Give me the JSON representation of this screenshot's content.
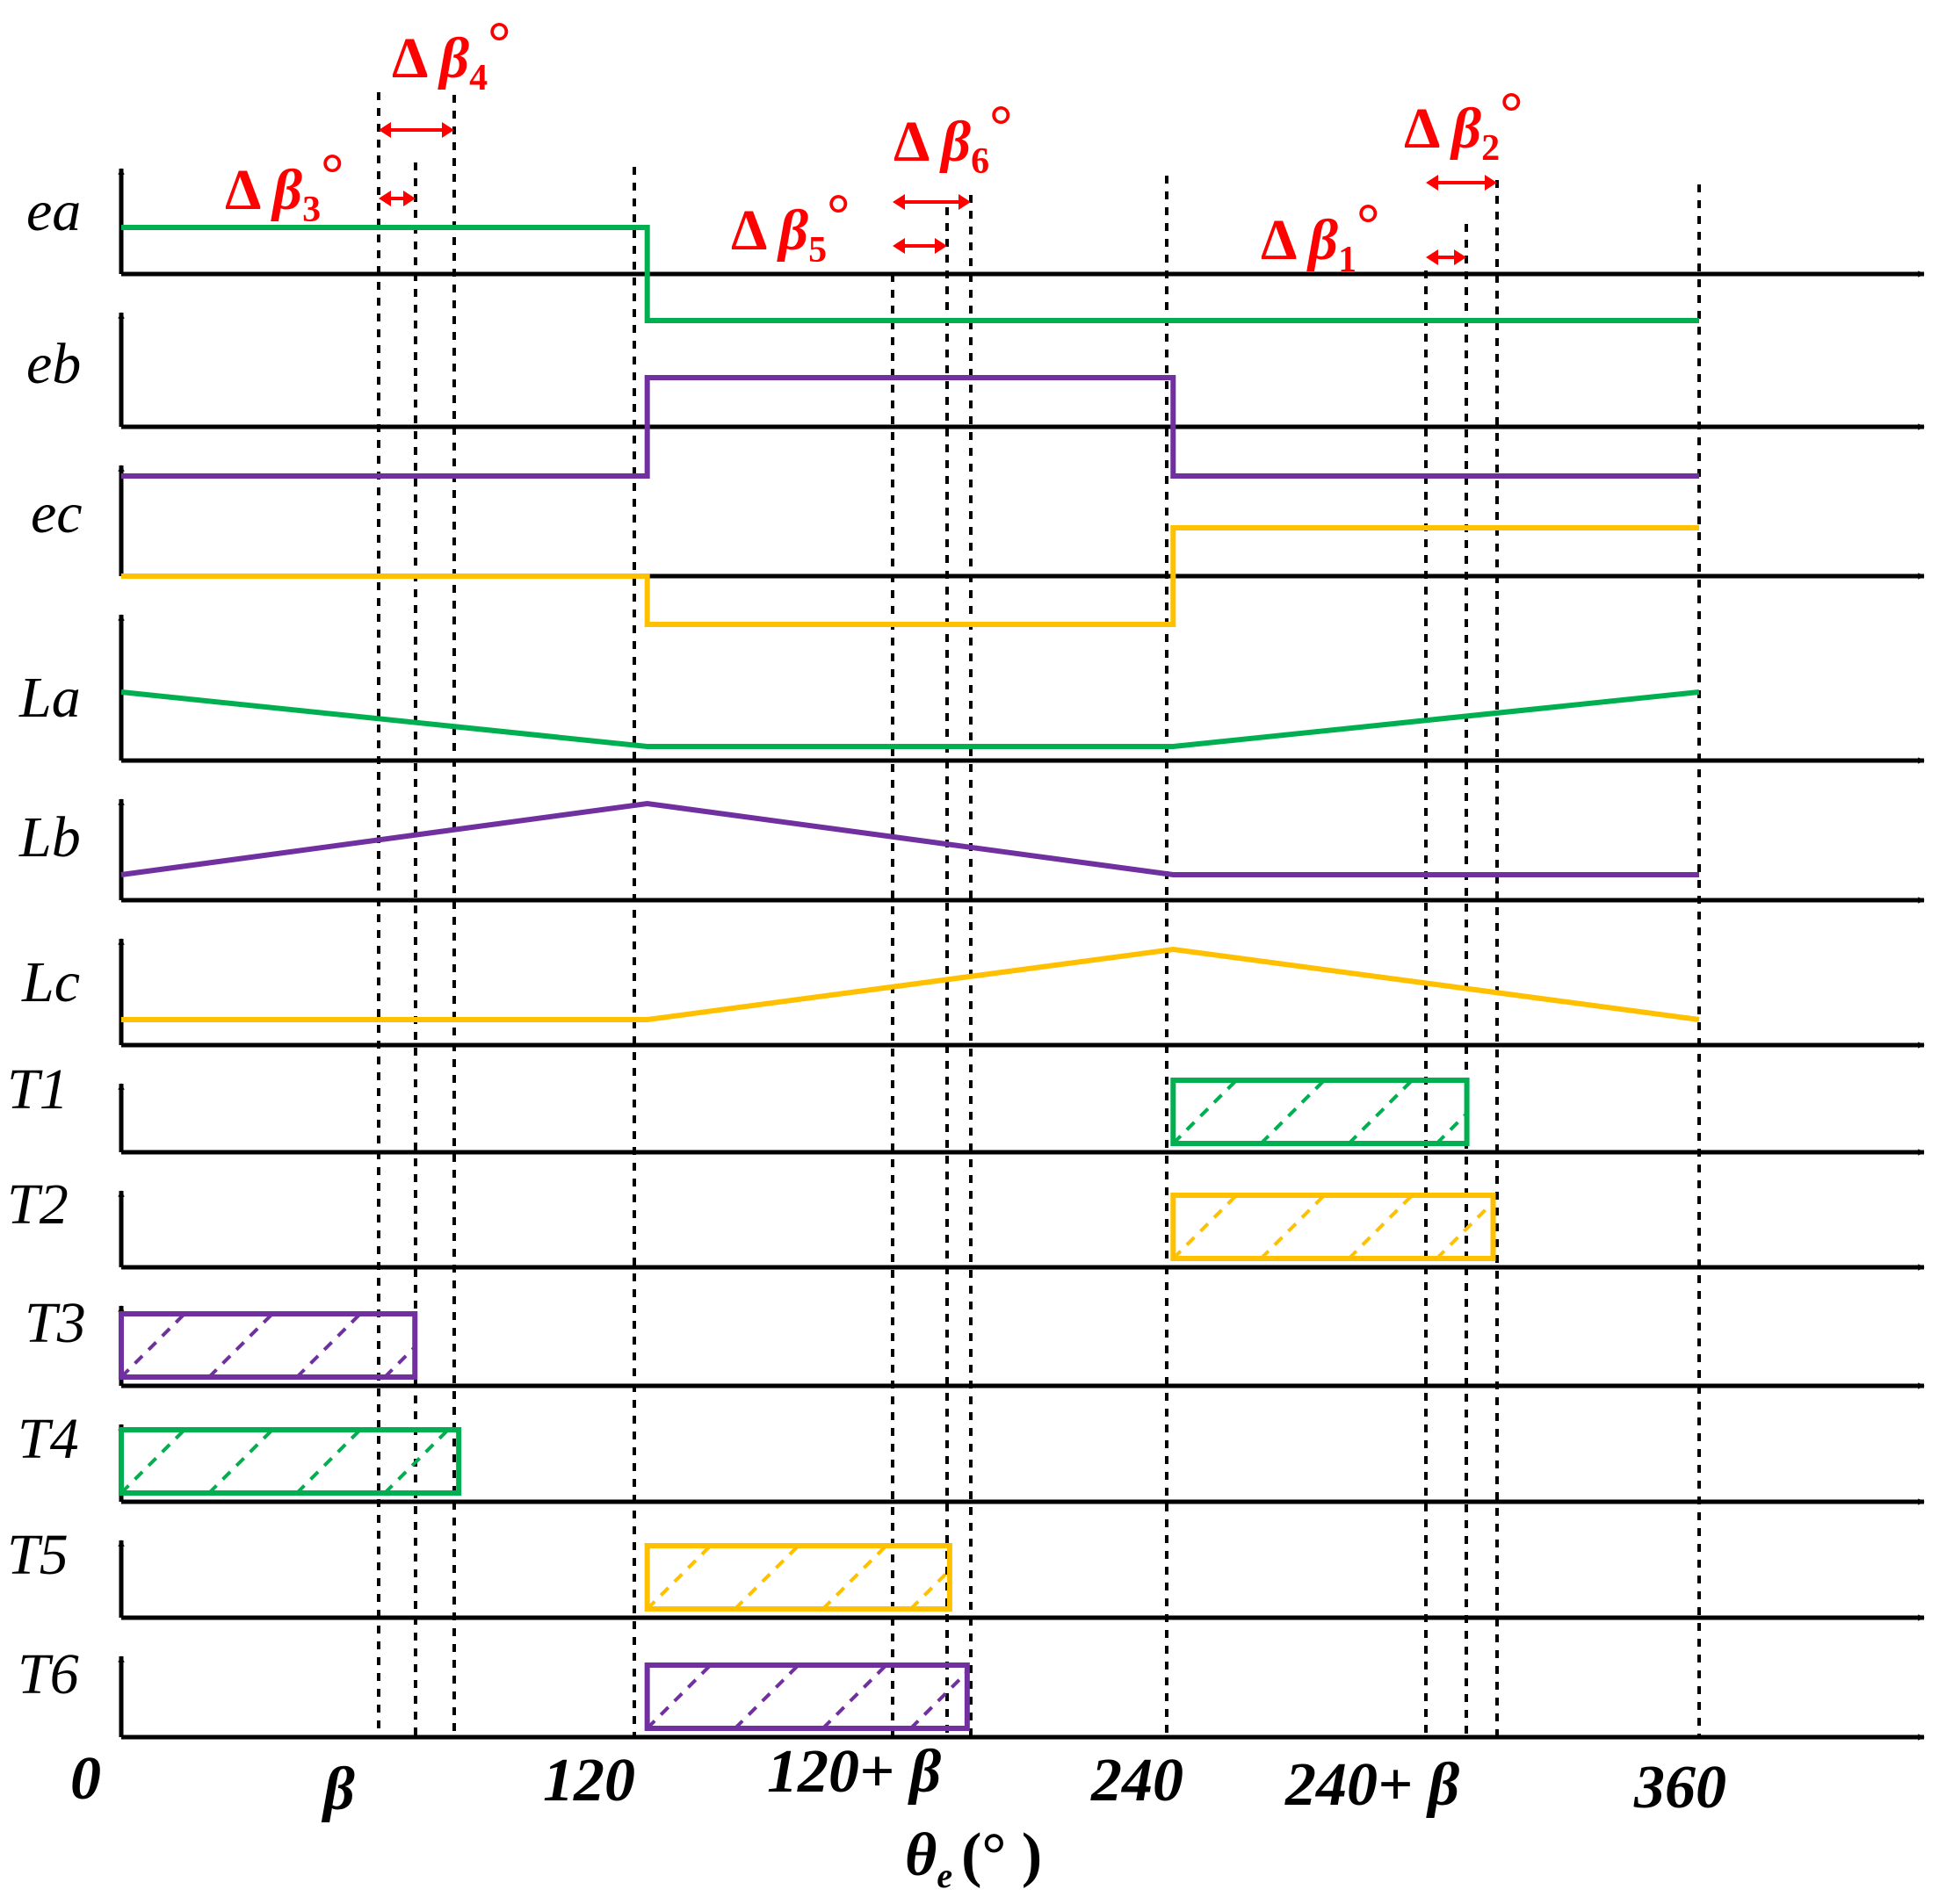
{
  "colors": {
    "phase_a": "#00b050",
    "phase_b": "#7030a0",
    "phase_c": "#ffc000",
    "annotation": "#ff0000",
    "axis": "#000000"
  },
  "rows": [
    {
      "label": "ea"
    },
    {
      "label": "eb"
    },
    {
      "label": "ec"
    },
    {
      "label": "La"
    },
    {
      "label": "Lb"
    },
    {
      "label": "Lc"
    },
    {
      "label": "T1"
    },
    {
      "label": "T2"
    },
    {
      "label": "T3"
    },
    {
      "label": "T4"
    },
    {
      "label": "T5"
    },
    {
      "label": "T6"
    }
  ],
  "x_axis": {
    "origin": "0",
    "ticks": [
      "β",
      "120",
      "120+ β",
      "240",
      "240+ β",
      "360"
    ],
    "title": "θ",
    "title_sub": "e",
    "title_unit": "(° )"
  },
  "annotations": [
    {
      "prefix": "Δ ",
      "sym": "β",
      "sub": "1",
      "suffix": "°"
    },
    {
      "prefix": "Δ ",
      "sym": "β",
      "sub": "2",
      "suffix": "°"
    },
    {
      "prefix": "Δ ",
      "sym": "β",
      "sub": "3",
      "suffix": "°"
    },
    {
      "prefix": "Δ ",
      "sym": "β",
      "sub": "4",
      "suffix": "°"
    },
    {
      "prefix": "Δ ",
      "sym": "β",
      "sub": "5",
      "suffix": "°"
    },
    {
      "prefix": "Δ ",
      "sym": "β",
      "sub": "6",
      "suffix": "°"
    }
  ],
  "waveforms": {
    "ea": [
      [
        0,
        1
      ],
      [
        120,
        1
      ],
      [
        120,
        -1
      ],
      [
        240,
        -1
      ],
      [
        240,
        -1
      ],
      [
        360,
        -1
      ]
    ],
    "eb": [
      [
        0,
        -1
      ],
      [
        120,
        -1
      ],
      [
        120,
        1
      ],
      [
        240,
        1
      ],
      [
        240,
        -1
      ],
      [
        360,
        -1
      ]
    ],
    "ec": [
      [
        0,
        0
      ],
      [
        120,
        0
      ],
      [
        120,
        -1
      ],
      [
        240,
        -1
      ],
      [
        240,
        1
      ],
      [
        360,
        1
      ]
    ],
    "La": [
      [
        0,
        1
      ],
      [
        120,
        0
      ],
      [
        240,
        0
      ],
      [
        360,
        1
      ]
    ],
    "Lb": [
      [
        0,
        0
      ],
      [
        120,
        1
      ],
      [
        240,
        0
      ],
      [
        360,
        0
      ]
    ],
    "Lc": [
      [
        0,
        0
      ],
      [
        120,
        0
      ],
      [
        240,
        1
      ],
      [
        360,
        0
      ]
    ]
  },
  "switch_intervals": {
    "T1": [
      240,
      307
    ],
    "T2": [
      240,
      313
    ],
    "T3": [
      0,
      67
    ],
    "T4": [
      0,
      77
    ],
    "T5": [
      120,
      189
    ],
    "T6": [
      120,
      193
    ]
  }
}
